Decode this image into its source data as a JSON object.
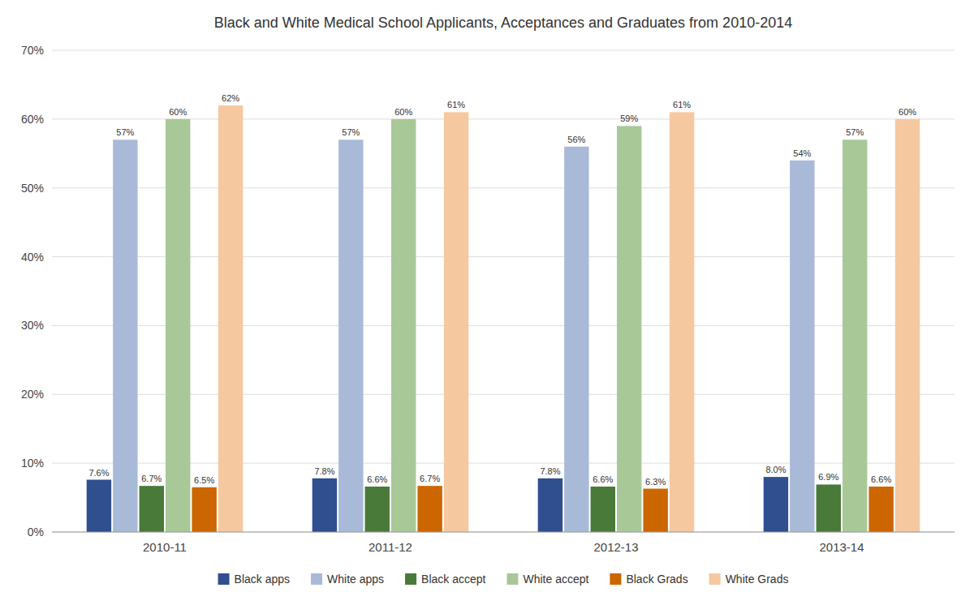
{
  "chart_data": {
    "type": "bar",
    "title": "Black and White Medical School Applicants, Acceptances and Graduates from 2010-2014",
    "categories": [
      "2010-11",
      "2011-12",
      "2012-13",
      "2013-14"
    ],
    "series": [
      {
        "name": "Black apps",
        "color": "#2F4F8F",
        "values": [
          7.6,
          7.8,
          7.8,
          8.0
        ],
        "value_labels": [
          "7.6%",
          "7.8%",
          "7.8%",
          "8.0%"
        ]
      },
      {
        "name": "White apps",
        "color": "#A8BAD8",
        "values": [
          57,
          57,
          56,
          54
        ],
        "value_labels": [
          "57%",
          "57%",
          "56%",
          "54%"
        ]
      },
      {
        "name": "Black accept",
        "color": "#4A7A3A",
        "values": [
          6.7,
          6.6,
          6.6,
          6.9
        ],
        "value_labels": [
          "6.7%",
          "6.6%",
          "6.6%",
          "6.9%"
        ]
      },
      {
        "name": "White accept",
        "color": "#A8C898",
        "values": [
          60,
          60,
          59,
          57
        ],
        "value_labels": [
          "60%",
          "60%",
          "59%",
          "57%"
        ]
      },
      {
        "name": "Black Grads",
        "color": "#CC6600",
        "values": [
          6.5,
          6.7,
          6.3,
          6.6
        ],
        "value_labels": [
          "6.5%",
          "6.7%",
          "6.3%",
          "6.6%"
        ]
      },
      {
        "name": "White Grads",
        "color": "#F5C8A0",
        "values": [
          62,
          61,
          61,
          60
        ],
        "value_labels": [
          "62%",
          "61%",
          "61%",
          "60%"
        ]
      }
    ],
    "ylim": [
      0,
      70
    ],
    "yticks": [
      {
        "value": 0,
        "label": "0%"
      },
      {
        "value": 10,
        "label": "10%"
      },
      {
        "value": 20,
        "label": "20%"
      },
      {
        "value": 30,
        "label": "30%"
      },
      {
        "value": 40,
        "label": "40%"
      },
      {
        "value": 50,
        "label": "50%"
      },
      {
        "value": 60,
        "label": "60%"
      },
      {
        "value": 70,
        "label": "70%"
      }
    ],
    "grid": true,
    "legend": "bottom",
    "data_labels": true
  }
}
